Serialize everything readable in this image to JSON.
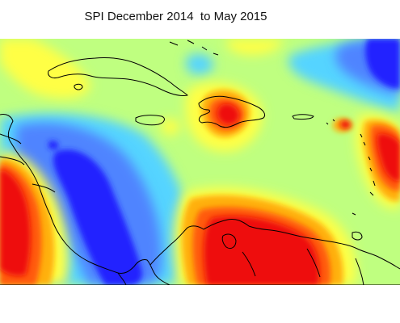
{
  "map": {
    "title": "SPI December 2014  to May 2015",
    "colors": {
      "very_dry": "#2323ff",
      "dry": "#4f84ff",
      "slightly_dry": "#55d4ff",
      "normal": "#bfff80",
      "slightly_wet": "#ffff44",
      "wet": "#ffb010",
      "very_wet": "#ff5a10",
      "extremely_wet": "#ee1111",
      "coast": "#000000"
    }
  }
}
